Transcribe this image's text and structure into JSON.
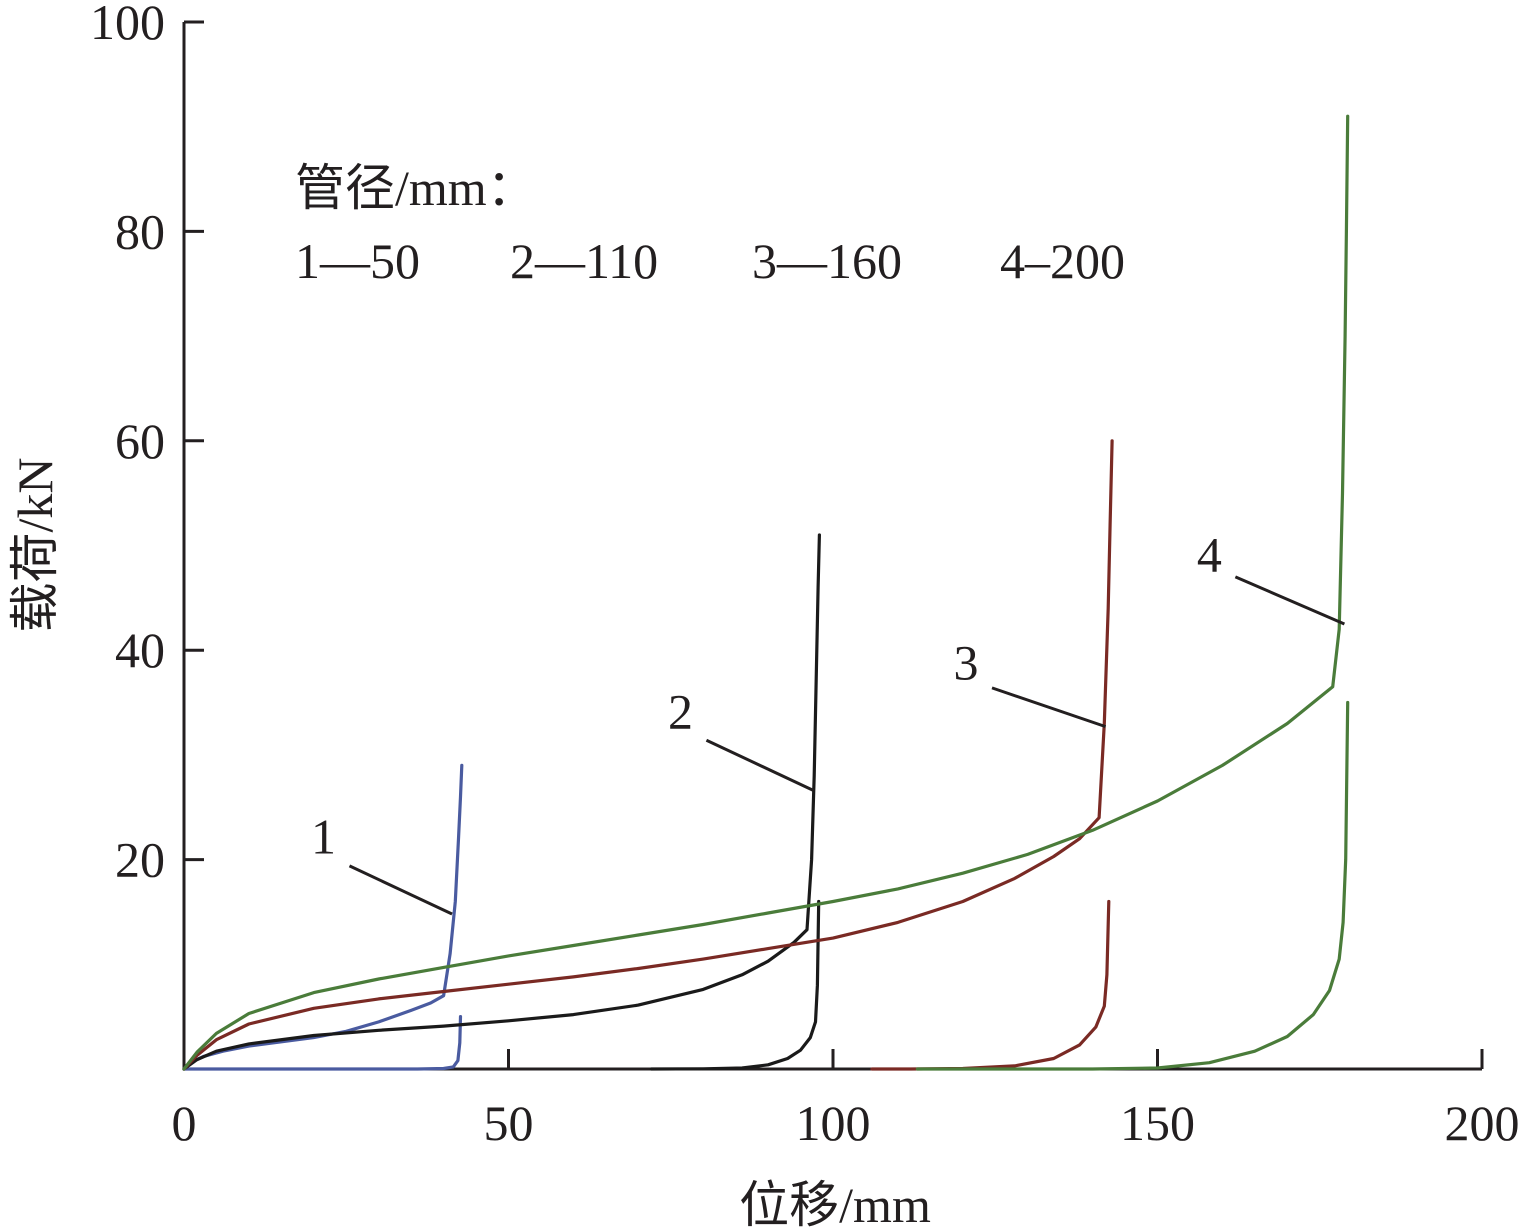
{
  "chart_data": {
    "type": "line",
    "xlabel": "位移/mm",
    "ylabel": "载荷/kN",
    "xlim": [
      0,
      200
    ],
    "ylim": [
      0,
      100
    ],
    "xticks": [
      "0",
      "50",
      "100",
      "150",
      "200"
    ],
    "yticks": [
      "20",
      "40",
      "60",
      "80",
      "100"
    ],
    "grid": false,
    "legend": {
      "title": "管径/mm：",
      "entries": [
        "1—50",
        "2—110",
        "3—160",
        "4–200"
      ],
      "placement": "top-left"
    },
    "series": [
      {
        "name": "1",
        "color": "#4a5ba0",
        "segments": [
          [
            [
              0,
              0
            ],
            [
              1,
              0.6
            ],
            [
              3,
              1.2
            ],
            [
              6,
              1.7
            ],
            [
              10,
              2.2
            ],
            [
              15,
              2.6
            ],
            [
              20,
              3.0
            ],
            [
              25,
              3.6
            ],
            [
              30,
              4.5
            ],
            [
              35,
              5.6
            ],
            [
              38,
              6.3
            ],
            [
              40,
              7.0
            ],
            [
              41,
              11
            ],
            [
              41.8,
              16
            ],
            [
              42.3,
              22
            ],
            [
              42.6,
              26
            ],
            [
              42.8,
              29
            ]
          ],
          [
            [
              0,
              0
            ],
            [
              10,
              0
            ],
            [
              20,
              0
            ],
            [
              30,
              0
            ],
            [
              36,
              0
            ],
            [
              40,
              0.05
            ],
            [
              41.5,
              0.2
            ],
            [
              42.2,
              0.8
            ],
            [
              42.5,
              2.5
            ],
            [
              42.6,
              5
            ]
          ]
        ]
      },
      {
        "name": "2",
        "color": "#1a1a1a",
        "segments": [
          [
            [
              0,
              0
            ],
            [
              2,
              0.9
            ],
            [
              5,
              1.7
            ],
            [
              10,
              2.4
            ],
            [
              20,
              3.2
            ],
            [
              30,
              3.7
            ],
            [
              40,
              4.1
            ],
            [
              50,
              4.6
            ],
            [
              60,
              5.2
            ],
            [
              70,
              6.1
            ],
            [
              80,
              7.6
            ],
            [
              86,
              9.0
            ],
            [
              90,
              10.3
            ],
            [
              94,
              12.1
            ],
            [
              96,
              13.3
            ],
            [
              96.7,
              20
            ],
            [
              97.1,
              28
            ],
            [
              97.5,
              40
            ],
            [
              97.7,
              46
            ],
            [
              97.9,
              51
            ]
          ],
          [
            [
              72,
              0
            ],
            [
              80,
              0.02
            ],
            [
              86,
              0.1
            ],
            [
              90,
              0.4
            ],
            [
              93,
              1.0
            ],
            [
              95,
              1.8
            ],
            [
              96.5,
              3.0
            ],
            [
              97.3,
              4.5
            ],
            [
              97.6,
              8
            ],
            [
              97.8,
              16
            ]
          ]
        ]
      },
      {
        "name": "3",
        "color": "#7a2a24",
        "segments": [
          [
            [
              0,
              0
            ],
            [
              2,
              1.3
            ],
            [
              5,
              2.8
            ],
            [
              10,
              4.3
            ],
            [
              20,
              5.8
            ],
            [
              30,
              6.7
            ],
            [
              40,
              7.4
            ],
            [
              50,
              8.1
            ],
            [
              60,
              8.8
            ],
            [
              70,
              9.6
            ],
            [
              80,
              10.5
            ],
            [
              90,
              11.5
            ],
            [
              100,
              12.5
            ],
            [
              110,
              14.0
            ],
            [
              120,
              16.0
            ],
            [
              128,
              18.2
            ],
            [
              134,
              20.3
            ],
            [
              138,
              22.0
            ],
            [
              141,
              24.0
            ],
            [
              141.8,
              33
            ],
            [
              142.4,
              44
            ],
            [
              142.7,
              52
            ],
            [
              143,
              60
            ]
          ],
          [
            [
              106,
              0
            ],
            [
              112,
              0
            ],
            [
              120,
              0.05
            ],
            [
              128,
              0.3
            ],
            [
              134,
              1.0
            ],
            [
              138,
              2.3
            ],
            [
              140.5,
              4.0
            ],
            [
              141.8,
              6.0
            ],
            [
              142.2,
              9
            ],
            [
              142.5,
              16
            ]
          ]
        ]
      },
      {
        "name": "4",
        "color": "#4a7c3a",
        "segments": [
          [
            [
              0,
              0
            ],
            [
              2,
              1.6
            ],
            [
              5,
              3.4
            ],
            [
              10,
              5.3
            ],
            [
              20,
              7.3
            ],
            [
              30,
              8.6
            ],
            [
              40,
              9.7
            ],
            [
              50,
              10.8
            ],
            [
              60,
              11.8
            ],
            [
              70,
              12.8
            ],
            [
              80,
              13.8
            ],
            [
              90,
              14.9
            ],
            [
              100,
              16.0
            ],
            [
              110,
              17.2
            ],
            [
              120,
              18.7
            ],
            [
              130,
              20.5
            ],
            [
              140,
              22.8
            ],
            [
              150,
              25.6
            ],
            [
              160,
              29.0
            ],
            [
              170,
              33.0
            ],
            [
              177,
              36.5
            ],
            [
              178,
              42
            ],
            [
              178.5,
              55
            ],
            [
              178.9,
              70
            ],
            [
              179.1,
              80
            ],
            [
              179.3,
              91
            ]
          ],
          [
            [
              113,
              0
            ],
            [
              125,
              0
            ],
            [
              140,
              0
            ],
            [
              150,
              0.1
            ],
            [
              158,
              0.6
            ],
            [
              165,
              1.7
            ],
            [
              170,
              3.1
            ],
            [
              174,
              5.2
            ],
            [
              176.5,
              7.5
            ],
            [
              178,
              10.5
            ],
            [
              178.6,
              14
            ],
            [
              179,
              20
            ],
            [
              179.3,
              35
            ]
          ]
        ]
      }
    ],
    "annotations": [
      {
        "text": "1",
        "label_at": [
          21.5,
          20.6
        ],
        "line_from": [
          25.5,
          19.4
        ],
        "line_to": [
          41.3,
          14.8
        ]
      },
      {
        "text": "2",
        "label_at": [
          76.5,
          32.5
        ],
        "line_from": [
          80.5,
          31.4
        ],
        "line_to": [
          97.0,
          26.6
        ]
      },
      {
        "text": "3",
        "label_at": [
          120.5,
          37.2
        ],
        "line_from": [
          124.5,
          36.4
        ],
        "line_to": [
          142.0,
          32.7
        ]
      },
      {
        "text": "4",
        "label_at": [
          158.0,
          47.5
        ],
        "line_from": [
          162.0,
          47.0
        ],
        "line_to": [
          178.8,
          42.5
        ]
      }
    ]
  }
}
